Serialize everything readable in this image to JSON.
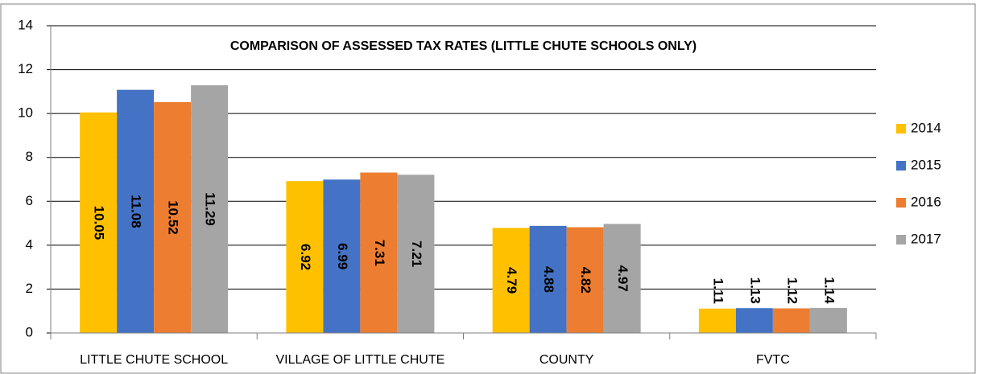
{
  "chart_data": {
    "type": "bar",
    "title": "COMPARISON OF ASSESSED TAX RATES (LITTLE CHUTE SCHOOLS ONLY)",
    "categories": [
      "LITTLE CHUTE SCHOOL",
      "VILLAGE OF LITTLE CHUTE",
      "COUNTY",
      "FVTC"
    ],
    "series": [
      {
        "name": "2014",
        "color": "#ffc000",
        "values": [
          10.05,
          6.92,
          4.79,
          1.11
        ]
      },
      {
        "name": "2015",
        "color": "#4472c4",
        "values": [
          11.08,
          6.99,
          4.88,
          1.13
        ]
      },
      {
        "name": "2016",
        "color": "#ed7d31",
        "values": [
          10.52,
          7.31,
          4.82,
          1.12
        ]
      },
      {
        "name": "2017",
        "color": "#a5a5a5",
        "values": [
          11.29,
          7.21,
          4.97,
          1.14
        ]
      }
    ],
    "ylim": [
      0,
      14
    ],
    "yticks": [
      0,
      2,
      4,
      6,
      8,
      10,
      12,
      14
    ],
    "grid": true,
    "legend": "right"
  }
}
